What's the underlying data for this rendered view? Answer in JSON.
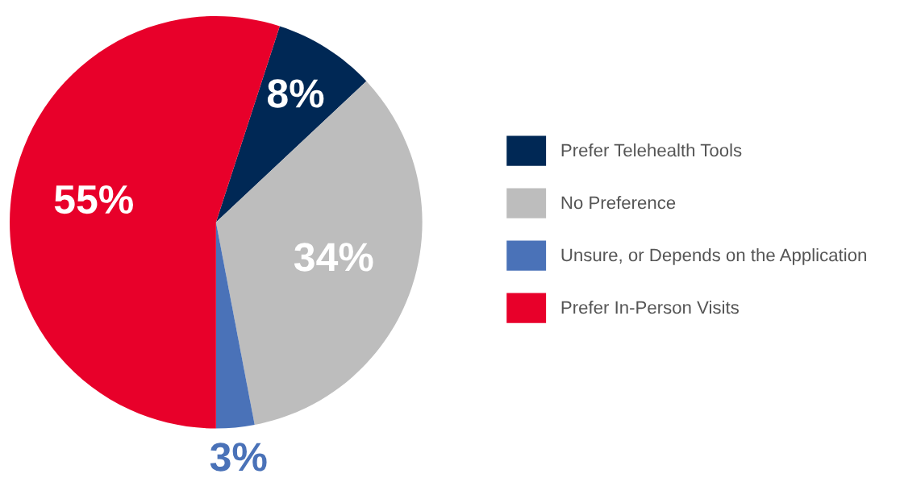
{
  "chart_data": {
    "type": "pie",
    "categories": [
      "Prefer Telehealth Tools",
      "No Preference",
      "Unsure, or Depends on the Application",
      "Prefer In-Person Visits"
    ],
    "values": [
      8,
      34,
      3,
      55
    ],
    "colors": [
      "#002855",
      "#bdbdbd",
      "#4a72b8",
      "#e8002a"
    ],
    "value_labels": [
      "8%",
      "34%",
      "3%",
      "55%"
    ],
    "legend": "right"
  }
}
